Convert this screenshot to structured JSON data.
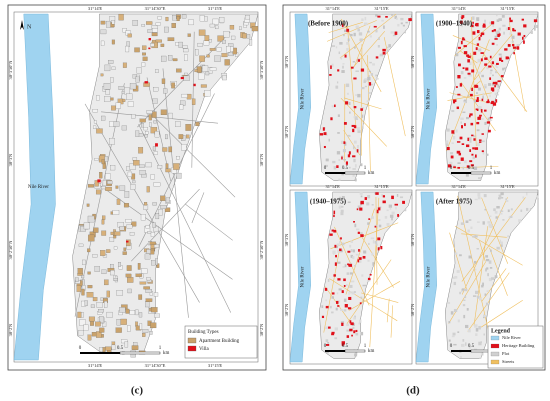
{
  "panel_c": {
    "north": "N",
    "top_coords": [
      "31°14'E",
      "31°14'30\"E",
      "31°15'E"
    ],
    "bottom_coords": [
      "31°14'E",
      "31°14'30\"E",
      "31°15'E"
    ],
    "left_coords": [
      "30°3'30\"N",
      "30°3'N",
      "30°2'30\"N",
      "30°2'N"
    ],
    "right_coords": [
      "30°3'30\"N",
      "30°3'N",
      "30°2'30\"N",
      "30°2'N"
    ],
    "river": "Nile River",
    "legend": {
      "title": "Building Types",
      "items": [
        "Apartment Building",
        "Villa"
      ]
    },
    "scale": {
      "ticks": [
        "0",
        "0.5",
        "1"
      ],
      "unit": "km"
    },
    "caption": "(c)"
  },
  "panel_d": {
    "maps": [
      {
        "title": "(Before 1900)",
        "river": "Nile River"
      },
      {
        "title": "(1900–1940)",
        "river": "Nile River"
      },
      {
        "title": "(1940–1975)",
        "river": "Nile River"
      },
      {
        "title": "(After 1975)",
        "river": "Nile River"
      }
    ],
    "top_coords": [
      "31°14'E",
      "31°15'E"
    ],
    "left_coords": [
      "30°3'N",
      "30°2'N"
    ],
    "scale": {
      "ticks": [
        "0",
        "0.5",
        "1"
      ],
      "unit": "km"
    },
    "legend": {
      "title": "Legend",
      "items": [
        "Nile River",
        "Heritage Building",
        "Plot",
        "Streets"
      ]
    },
    "caption": "(d)"
  }
}
